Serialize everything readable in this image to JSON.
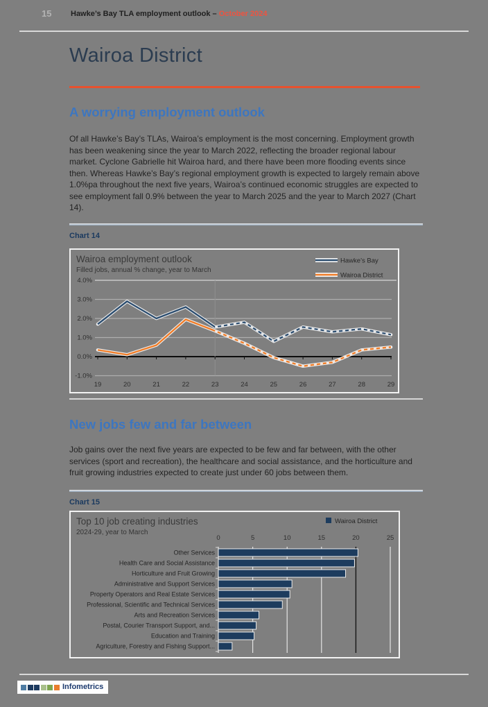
{
  "header": {
    "page_number": "15",
    "title": "Hawke’s Bay TLA employment outlook – ",
    "date": "October 2024"
  },
  "page_title": "Wairoa District",
  "accent_color": "#e8512e",
  "heading_color": "#3d76c0",
  "sections": [
    {
      "heading": "A worrying employment outlook",
      "paragraph": "Of all Hawke’s Bay’s TLAs, Wairoa’s employment is the most concerning. Employment growth has been weakening since the year to March 2022, reflecting the broader regional labour market. Cyclone Gabrielle hit Wairoa hard, and there have been more flooding events since then. Whereas Hawke’s Bay’s regional employment growth is expected to largely remain above 1.0%pa throughout the next five years, Wairoa’s continued economic struggles are expected to see employment fall 0.9% between the year to March 2025 and the year to March 2027 (Chart 14).",
      "chart_label": "Chart 14"
    },
    {
      "heading": "New jobs few and far between",
      "paragraph": "Job gains over the next five years are expected to be few and far between, with the other services (sport and recreation), the healthcare and social assistance, and the horticulture and fruit growing industries expected to create just under 60 jobs between them.",
      "chart_label": "Chart 15"
    }
  ],
  "chart_data": [
    {
      "type": "line",
      "title": "Wairoa employment outlook",
      "subtitle": "Filled jobs, annual % change, year to March",
      "x": [
        19,
        20,
        21,
        22,
        23,
        24,
        25,
        26,
        27,
        28,
        29
      ],
      "x_tick_labels": [
        "19",
        "20",
        "21",
        "22",
        "23",
        "24",
        "25",
        "26",
        "27",
        "28",
        "29"
      ],
      "ylim": [
        -1.0,
        4.0
      ],
      "y_ticks": [
        4,
        3,
        2,
        1,
        0,
        -1
      ],
      "y_tick_labels": [
        "4.0%",
        "3.0%",
        "2.0%",
        "1.0%",
        "0.0%",
        "-1.0%"
      ],
      "grid": true,
      "legend_position": "top-right",
      "forecast_from_x": 23,
      "series": [
        {
          "name": "Hawke’s Bay",
          "color": "#2d4e70",
          "values": [
            1.7,
            2.9,
            2.0,
            2.6,
            1.55,
            1.8,
            0.8,
            1.55,
            1.3,
            1.45,
            1.15
          ]
        },
        {
          "name": "Wairoa District",
          "color": "#f07d28",
          "values": [
            0.35,
            0.1,
            0.6,
            1.95,
            1.35,
            0.7,
            -0.05,
            -0.5,
            -0.3,
            0.35,
            0.5
          ]
        }
      ]
    },
    {
      "type": "bar",
      "title": "Top 10 job creating industries",
      "subtitle": "2024-29, year to March",
      "legend": "Wairoa District",
      "bar_color": "#1d3c5e",
      "xlim": [
        0,
        25
      ],
      "x_ticks": [
        0,
        5,
        10,
        15,
        20,
        25
      ],
      "categories": [
        "Other Services",
        "Health Care and Social Assistance",
        "Horticulture and Fruit Growing",
        "Administrative and Support Services",
        "Property Operators and Real Estate Services",
        "Professional, Scientific and Technical Services",
        "Arts and Recreation Services",
        "Postal, Courier Transport Support, and...",
        "Education and Training",
        "Agriculture, Forestry and Fishing Support..."
      ],
      "values": [
        20.3,
        19.8,
        18.5,
        10.7,
        10.4,
        9.3,
        5.9,
        5.5,
        5.2,
        2.0
      ]
    }
  ],
  "footer": {
    "brand": "Infometrics",
    "logo_colors": [
      "#4e7ca3",
      "#1d3a5f",
      "#1d3a5f",
      "#a9c08b",
      "#7fa650",
      "#e97e2d"
    ]
  }
}
